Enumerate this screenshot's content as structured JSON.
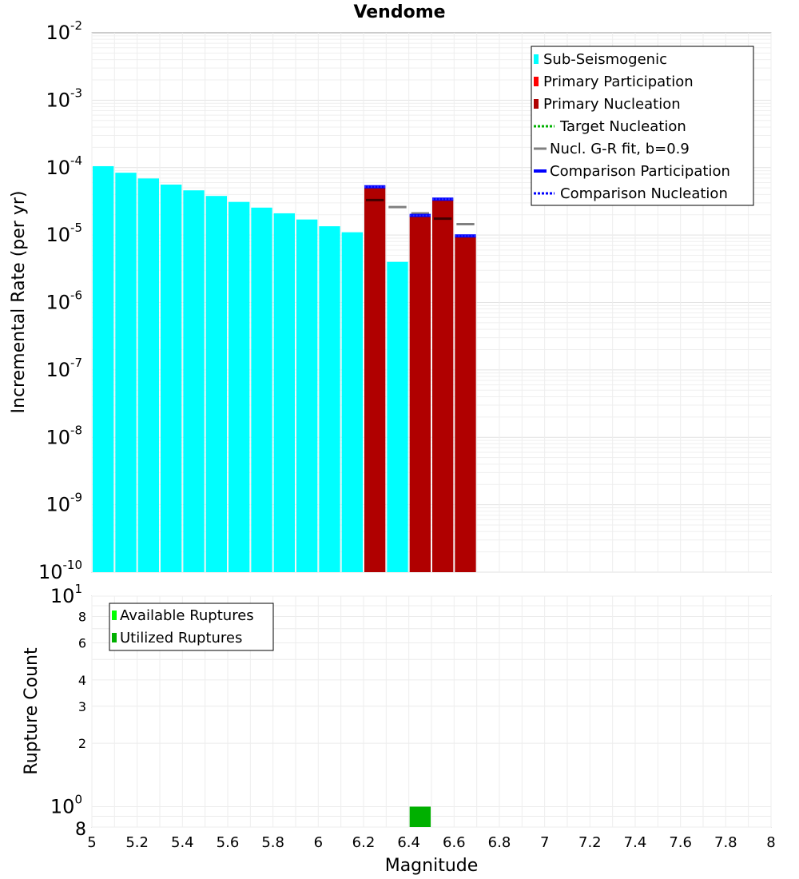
{
  "chart_data": [
    {
      "type": "bar",
      "title": "Vendome",
      "xlabel": "Magnitude",
      "ylabel": "Incremental Rate (per yr)",
      "yscale": "log",
      "xlim": [
        5,
        8
      ],
      "ylim": [
        1e-10,
        0.01
      ],
      "bin_width": 0.1,
      "y_tick_labels": [
        {
          "base": "10",
          "exp": "-2"
        },
        {
          "base": "10",
          "exp": "-3"
        },
        {
          "base": "10",
          "exp": "-4"
        },
        {
          "base": "10",
          "exp": "-5"
        },
        {
          "base": "10",
          "exp": "-6"
        },
        {
          "base": "10",
          "exp": "-7"
        },
        {
          "base": "10",
          "exp": "-8"
        },
        {
          "base": "10",
          "exp": "-9"
        },
        {
          "base": "10",
          "exp": "-10"
        }
      ],
      "series": [
        {
          "name": "Sub-Seismogenic",
          "color": "#00ffff",
          "x": [
            5.05,
            5.15,
            5.25,
            5.35,
            5.45,
            5.55,
            5.65,
            5.75,
            5.85,
            5.95,
            6.05,
            6.15,
            6.35
          ],
          "values": [
            0.000105,
            8.4e-05,
            6.9e-05,
            5.6e-05,
            4.6e-05,
            3.8e-05,
            3.1e-05,
            2.55e-05,
            2.1e-05,
            1.7e-05,
            1.35e-05,
            1.1e-05,
            4e-06
          ]
        },
        {
          "name": "Primary Participation",
          "color": "#ff0000",
          "x": [],
          "values": []
        },
        {
          "name": "Primary Nucleation",
          "color": "#b00000",
          "x": [
            6.25,
            6.45,
            6.55,
            6.65
          ],
          "values": [
            5e-05,
            1.9e-05,
            3.3e-05,
            9.5e-06
          ]
        },
        {
          "name": "Target Nucleation",
          "color": "#00b000",
          "x": [],
          "values": []
        },
        {
          "name": "Nucl. G-R fit, b=0.9",
          "color": "#808080",
          "x": [
            6.25,
            6.35,
            6.45,
            6.55,
            6.65
          ],
          "values": [
            3.3e-05,
            2.6e-05,
            2.1e-05,
            1.75e-05,
            1.45e-05
          ]
        },
        {
          "name": "Comparison Participation",
          "color": "#0000ff",
          "x": [
            6.25,
            6.45,
            6.55,
            6.65
          ],
          "values": [
            5.2e-05,
            1.95e-05,
            3.4e-05,
            9.7e-06
          ]
        },
        {
          "name": "Comparison Nucleation",
          "color": "#0000ff",
          "x": [
            6.25,
            6.45,
            6.55,
            6.65
          ],
          "values": [
            5.2e-05,
            1.95e-05,
            3.4e-05,
            9.7e-06
          ]
        }
      ],
      "legend": [
        "Sub-Seismogenic",
        "Primary Participation",
        "Primary Nucleation",
        "Target Nucleation",
        "Nucl. G-R fit, b=0.9",
        "Comparison Participation",
        "Comparison Nucleation"
      ],
      "legend_position": "top-right"
    },
    {
      "type": "bar",
      "title": "",
      "xlabel": "Magnitude",
      "ylabel": "Rupture Count",
      "yscale": "log",
      "xlim": [
        5,
        8
      ],
      "ylim": [
        0.8,
        10
      ],
      "x_tick_labels": [
        "5",
        "5.2",
        "5.4",
        "5.6",
        "5.8",
        "6",
        "6.2",
        "6.4",
        "6.6",
        "6.8",
        "7",
        "7.2",
        "7.4",
        "7.6",
        "7.8",
        "8"
      ],
      "y_major_ticks": [
        {
          "value": 10,
          "base": "10",
          "exp": "1"
        },
        {
          "value": 1,
          "base": "10",
          "exp": "0"
        }
      ],
      "y_minor_ticks": [
        {
          "value": 8,
          "label": "8"
        },
        {
          "value": 6,
          "label": "6"
        },
        {
          "value": 4,
          "label": "4"
        },
        {
          "value": 3,
          "label": "3"
        },
        {
          "value": 2,
          "label": "2"
        },
        {
          "value": 0.8,
          "label": "8"
        }
      ],
      "series": [
        {
          "name": "Available Ruptures",
          "color": "#00ff00",
          "x": [
            6.45
          ],
          "values": [
            1
          ]
        },
        {
          "name": "Utilized Ruptures",
          "color": "#00b000",
          "x": [
            6.45
          ],
          "values": [
            1
          ]
        }
      ],
      "legend": [
        "Available Ruptures",
        "Utilized Ruptures"
      ],
      "legend_position": "top-left"
    }
  ]
}
